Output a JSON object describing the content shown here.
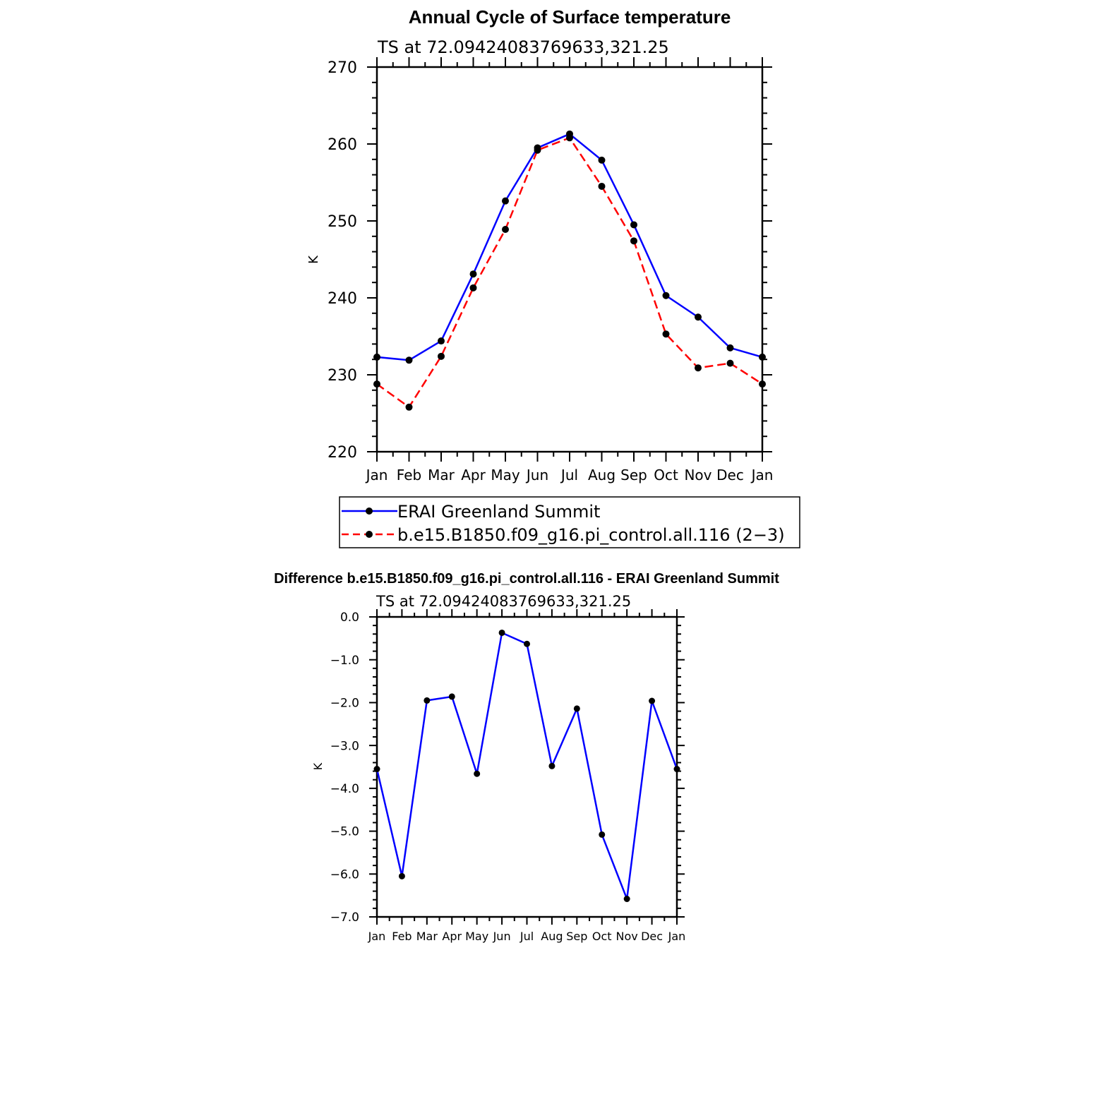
{
  "colors": {
    "obs": "#0000ff",
    "model": "#ff0000",
    "diff": "#0000ff",
    "marker": "#000000"
  },
  "chart_data": [
    {
      "type": "line",
      "title": "Annual Cycle of Surface temperature",
      "subtitle": "TS at 72.09424083769633,321.25",
      "ylabel": "K",
      "ylim": [
        220,
        270
      ],
      "yticks": [
        "270",
        "260",
        "250",
        "240",
        "230",
        "220"
      ],
      "ytick_values": [
        270,
        260,
        250,
        240,
        230,
        220
      ],
      "categories": [
        "Jan",
        "Feb",
        "Mar",
        "Apr",
        "May",
        "Jun",
        "Jul",
        "Aug",
        "Sep",
        "Oct",
        "Nov",
        "Dec",
        "Jan"
      ],
      "series": [
        {
          "name": "ERAI Greenland Summit",
          "style": "solid",
          "values": [
            232.3,
            231.9,
            234.4,
            243.1,
            252.6,
            259.5,
            261.3,
            257.9,
            249.5,
            240.3,
            237.5,
            233.5,
            232.3
          ]
        },
        {
          "name": "b.e15.B1850.f09_g16.pi_control.all.116 (2−3)",
          "style": "dashed",
          "values": [
            228.8,
            225.8,
            232.4,
            241.3,
            248.9,
            259.2,
            260.8,
            254.5,
            247.4,
            235.3,
            230.9,
            231.5,
            228.8
          ]
        }
      ],
      "legend": "below"
    },
    {
      "type": "line",
      "title": "Difference b.e15.B1850.f09_g16.pi_control.all.116 - ERAI Greenland Summit",
      "subtitle": "TS at 72.09424083769633,321.25",
      "ylabel": "K",
      "ylim": [
        -7,
        0
      ],
      "yticks": [
        "0.0",
        "−1.0",
        "−2.0",
        "−3.0",
        "−4.0",
        "−5.0",
        "−6.0",
        "−7.0"
      ],
      "ytick_values": [
        0,
        -1,
        -2,
        -3,
        -4,
        -5,
        -6,
        -7
      ],
      "categories": [
        "Jan",
        "Feb",
        "Mar",
        "Apr",
        "May",
        "Jun",
        "Jul",
        "Aug",
        "Sep",
        "Oct",
        "Nov",
        "Dec",
        "Jan"
      ],
      "series": [
        {
          "name": "difference",
          "style": "solid",
          "values": [
            -3.55,
            -6.05,
            -1.95,
            -1.86,
            -3.66,
            -0.37,
            -0.63,
            -3.48,
            -2.14,
            -5.08,
            -6.58,
            -1.96,
            -3.55
          ]
        }
      ]
    }
  ]
}
